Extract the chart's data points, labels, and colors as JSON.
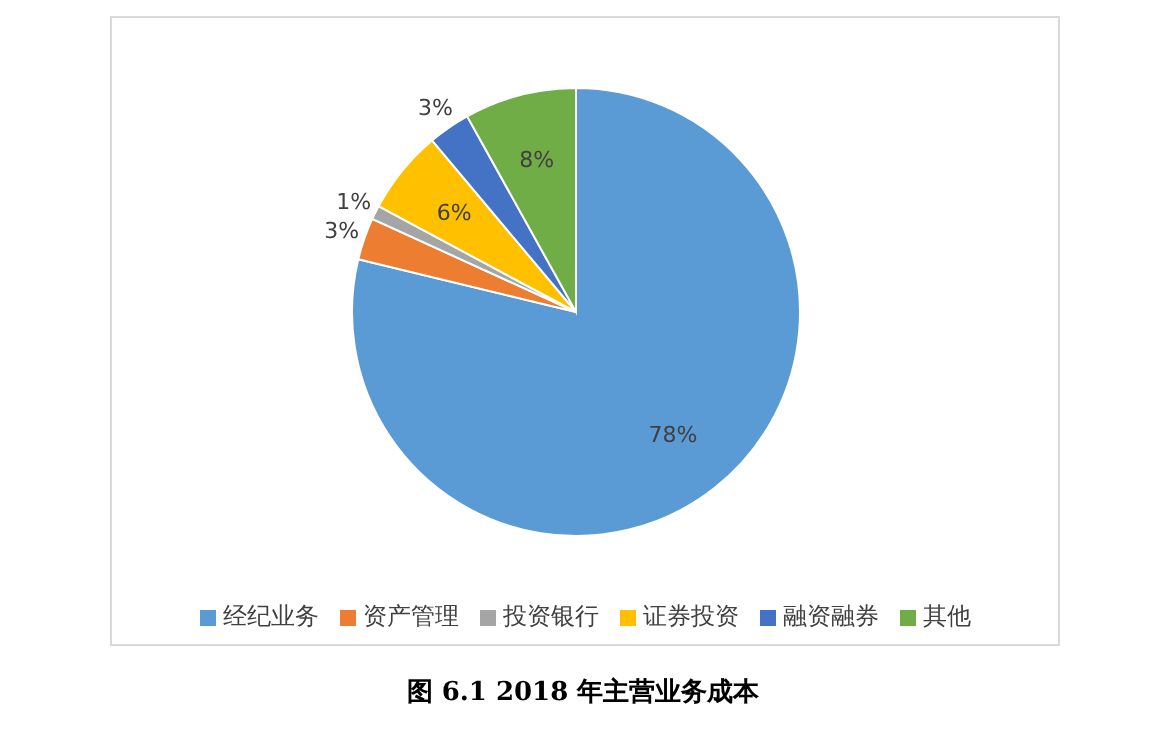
{
  "chart_data": {
    "type": "pie",
    "title": "图 6.1 2018 年主营业务成本",
    "categories": [
      "经纪业务",
      "资产管理",
      "投资银行",
      "证券投资",
      "融资融券",
      "其他"
    ],
    "values": [
      78,
      3,
      1,
      6,
      3,
      8
    ],
    "colors": [
      "#5b9bd5",
      "#ed7d31",
      "#a5a5a5",
      "#ffc000",
      "#4472c4",
      "#70ad47"
    ],
    "value_labels": [
      "78%",
      "3%",
      "1%",
      "6%",
      "3%",
      "8%"
    ],
    "legend": "bottom"
  }
}
